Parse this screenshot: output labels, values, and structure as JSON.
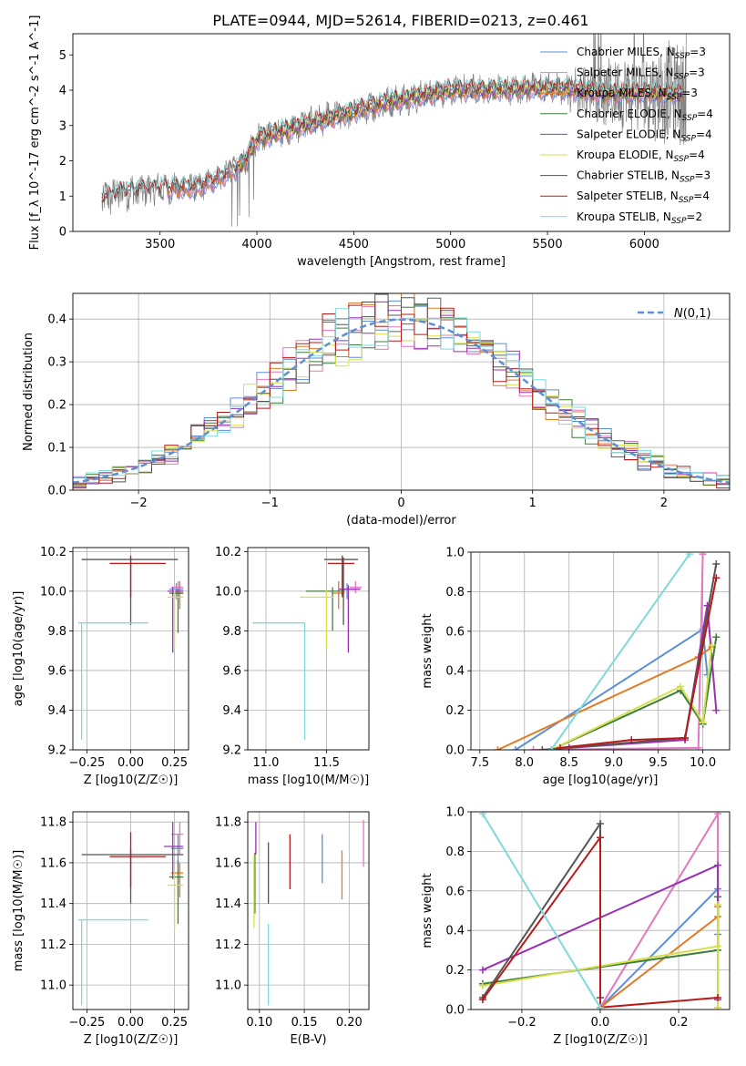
{
  "figure": {
    "title": "PLATE=0944, MJD=52614, FIBERID=0213, z=0.461"
  },
  "colors": {
    "Chabrier MILES": "#5b8fd6",
    "Salpeter MILES": "#e377c2",
    "Kroupa MILES": "#e07b26",
    "Chabrier ELODIE": "#3d7d3d",
    "Salpeter ELODIE": "#9b30b5",
    "Kroupa ELODIE": "#d6e04a",
    "Chabrier STELIB": "#555555",
    "Salpeter STELIB": "#b81a1a",
    "Kroupa STELIB": "#7fd9db",
    "data": "#7f7f7f"
  },
  "chart_data": [
    {
      "id": "spectrum",
      "type": "line",
      "xlabel": "wavelength [Angstrom, rest frame]",
      "ylabel": "Flux [f_λ 10^-17 erg cm^-2 s^-1 A^-1]",
      "xlim": [
        3050,
        6440
      ],
      "ylim": [
        0,
        5.6
      ],
      "xticks": [
        3500,
        4000,
        4500,
        5000,
        5500,
        6000
      ],
      "yticks": [
        0,
        1,
        2,
        3,
        4,
        5
      ],
      "grid": false,
      "legend_position": "upper right",
      "legend": [
        "Chabrier MILES, N_SSP=3",
        "Salpeter MILES, N_SSP=3",
        "Kroupa MILES, N_SSP=3",
        "Chabrier ELODIE, N_SSP=4",
        "Salpeter ELODIE, N_SSP=4",
        "Kroupa ELODIE, N_SSP=4",
        "Chabrier STELIB, N_SSP=3",
        "Salpeter STELIB, N_SSP=4",
        "Kroupa STELIB, N_SSP=2"
      ],
      "series": [
        {
          "name": "Chabrier MILES, N_SSP=3",
          "wavelength_range": [
            3540,
            6200
          ]
        },
        {
          "name": "Salpeter MILES, N_SSP=3",
          "wavelength_range": [
            3540,
            6200
          ]
        },
        {
          "name": "Kroupa MILES, N_SSP=3",
          "wavelength_range": [
            3540,
            6200
          ]
        },
        {
          "name": "Chabrier ELODIE, N_SSP=4",
          "wavelength_range": [
            3900,
            6200
          ]
        },
        {
          "name": "Salpeter ELODIE, N_SSP=4",
          "wavelength_range": [
            3900,
            6200
          ]
        },
        {
          "name": "Kroupa ELODIE, N_SSP=4",
          "wavelength_range": [
            3900,
            6200
          ]
        },
        {
          "name": "Chabrier STELIB, N_SSP=3",
          "wavelength_range": [
            3200,
            6200
          ]
        },
        {
          "name": "Salpeter STELIB, N_SSP=4",
          "wavelength_range": [
            3200,
            6200
          ]
        },
        {
          "name": "Kroupa STELIB, N_SSP=2",
          "wavelength_range": [
            3200,
            6200
          ]
        }
      ],
      "continuum_wavelength": [
        3200,
        3300,
        3500,
        3700,
        3800,
        3900,
        3950,
        4000,
        4100,
        4300,
        4500,
        4700,
        4900,
        5000,
        5200,
        5400,
        5600,
        5800,
        6000,
        6200
      ],
      "continuum_flux": [
        0.9,
        1.1,
        1.2,
        1.25,
        1.5,
        1.8,
        2.1,
        2.6,
        2.8,
        3.1,
        3.4,
        3.7,
        3.9,
        4.0,
        4.0,
        4.05,
        4.05,
        3.9,
        3.95,
        3.9
      ]
    },
    {
      "id": "residuals",
      "type": "histogram",
      "xlabel": "(data-model)/error",
      "ylabel": "Normed distribution",
      "xlim": [
        -2.5,
        2.5
      ],
      "ylim": [
        0,
        0.46
      ],
      "xticks": [
        -2,
        -1,
        0,
        1,
        2
      ],
      "yticks": [
        0.0,
        0.1,
        0.2,
        0.3,
        0.4
      ],
      "grid": true,
      "legend_position": "upper right",
      "legend": [
        "N(0,1)"
      ],
      "bin_width": 0.1,
      "gaussian": {
        "mean": 0,
        "sigma": 1
      }
    },
    {
      "id": "age_vs_Z",
      "type": "errorbar",
      "xlabel": "Z [log10(Z/Z☉)]",
      "ylabel": "age [log10(age/yr)]",
      "xlim": [
        -0.33,
        0.33
      ],
      "ylim": [
        9.2,
        10.22
      ],
      "xticks": [
        -0.25,
        0.0,
        0.25
      ],
      "yticks": [
        9.2,
        9.4,
        9.6,
        9.8,
        10.0,
        10.2
      ],
      "grid": true,
      "points": [
        {
          "model": "Chabrier MILES",
          "x": 0.26,
          "xerr": [
            0.04,
            0.04
          ],
          "y": 10.01,
          "yerr": [
            0.05,
            0.03
          ]
        },
        {
          "model": "Salpeter MILES",
          "x": 0.27,
          "xerr": [
            0.04,
            0.03
          ],
          "y": 10.02,
          "yerr": [
            0.03,
            0.03
          ]
        },
        {
          "model": "Kroupa MILES",
          "x": 0.28,
          "xerr": [
            0.04,
            0.02
          ],
          "y": 9.99,
          "yerr": [
            0.08,
            0.06
          ]
        },
        {
          "model": "Chabrier ELODIE",
          "x": 0.27,
          "xerr": [
            0.05,
            0.03
          ],
          "y": 9.99,
          "yerr": [
            0.2,
            0.02
          ]
        },
        {
          "model": "Salpeter ELODIE",
          "x": 0.24,
          "xerr": [
            0.03,
            0.06
          ],
          "y": 10.0,
          "yerr": [
            0.31,
            0.02
          ]
        },
        {
          "model": "Kroupa ELODIE",
          "x": 0.25,
          "xerr": [
            0.04,
            0.05
          ],
          "y": 9.97,
          "yerr": [
            0.26,
            0.04
          ]
        },
        {
          "model": "Chabrier STELIB",
          "x": 0.0,
          "xerr": [
            0.28,
            0.27
          ],
          "y": 10.16,
          "yerr": [
            0.33,
            0.01
          ]
        },
        {
          "model": "Salpeter STELIB",
          "x": 0.0,
          "xerr": [
            0.12,
            0.2
          ],
          "y": 10.14,
          "yerr": [
            0.17,
            0.04
          ]
        },
        {
          "model": "Kroupa STELIB",
          "x": -0.28,
          "xerr": [
            0.02,
            0.38
          ],
          "y": 9.84,
          "yerr": [
            0.59,
            0.0
          ]
        }
      ]
    },
    {
      "id": "age_vs_mass",
      "type": "errorbar",
      "xlabel": "mass [log10(M/M☉)]",
      "ylabel": "",
      "xlim": [
        10.85,
        11.85
      ],
      "ylim": [
        9.2,
        10.22
      ],
      "xticks": [
        11.0,
        11.5
      ],
      "yticks": [
        9.2,
        9.4,
        9.6,
        9.8,
        10.0,
        10.2
      ],
      "grid": true,
      "points": [
        {
          "model": "Chabrier MILES",
          "x": 11.67,
          "xerr": [
            0.06,
            0.06
          ],
          "y": 10.01,
          "yerr": [
            0.05,
            0.03
          ]
        },
        {
          "model": "Salpeter MILES",
          "x": 11.74,
          "xerr": [
            0.05,
            0.05
          ],
          "y": 10.02,
          "yerr": [
            0.03,
            0.03
          ]
        },
        {
          "model": "Kroupa MILES",
          "x": 11.6,
          "xerr": [
            0.05,
            0.05
          ],
          "y": 9.99,
          "yerr": [
            0.08,
            0.06
          ]
        },
        {
          "model": "Chabrier ELODIE",
          "x": 11.55,
          "xerr": [
            0.22,
            0.1
          ],
          "y": 10.0,
          "yerr": [
            0.2,
            0.02
          ]
        },
        {
          "model": "Salpeter ELODIE",
          "x": 11.68,
          "xerr": [
            0.08,
            0.1
          ],
          "y": 10.01,
          "yerr": [
            0.32,
            0.02
          ]
        },
        {
          "model": "Kroupa ELODIE",
          "x": 11.5,
          "xerr": [
            0.22,
            0.06
          ],
          "y": 9.97,
          "yerr": [
            0.26,
            0.04
          ]
        },
        {
          "model": "Chabrier STELIB",
          "x": 11.64,
          "xerr": [
            0.16,
            0.12
          ],
          "y": 10.16,
          "yerr": [
            0.33,
            0.01
          ]
        },
        {
          "model": "Salpeter STELIB",
          "x": 11.63,
          "xerr": [
            0.12,
            0.1
          ],
          "y": 10.14,
          "yerr": [
            0.17,
            0.04
          ]
        },
        {
          "model": "Kroupa STELIB",
          "x": 11.32,
          "xerr": [
            0.43,
            0.0
          ],
          "y": 9.84,
          "yerr": [
            0.59,
            0.0
          ]
        }
      ]
    },
    {
      "id": "weight_vs_age",
      "type": "line",
      "xlabel": "age [log10(age/yr)]",
      "ylabel": "mass weight",
      "xlim": [
        7.4,
        10.3
      ],
      "ylim": [
        0,
        1.0
      ],
      "xticks": [
        7.5,
        8.0,
        8.5,
        9.0,
        9.5,
        10.0
      ],
      "yticks": [
        0.0,
        0.2,
        0.4,
        0.6,
        0.8,
        1.0
      ],
      "grid": true,
      "series": [
        {
          "name": "Chabrier MILES",
          "x": [
            7.9,
            10.0,
            10.05
          ],
          "y": [
            0.0,
            0.61,
            0.38
          ]
        },
        {
          "name": "Salpeter MILES",
          "x": [
            8.1,
            9.95,
            10.0
          ],
          "y": [
            0.0,
            0.01,
            0.99
          ]
        },
        {
          "name": "Kroupa MILES",
          "x": [
            7.7,
            9.95,
            10.1
          ],
          "y": [
            0.0,
            0.47,
            0.52
          ]
        },
        {
          "name": "Chabrier ELODIE",
          "x": [
            8.3,
            9.75,
            10.0,
            10.15
          ],
          "y": [
            0.0,
            0.3,
            0.13,
            0.57
          ]
        },
        {
          "name": "Salpeter ELODIE",
          "x": [
            8.5,
            9.8,
            10.05,
            10.15
          ],
          "y": [
            0.01,
            0.05,
            0.73,
            0.2
          ]
        },
        {
          "name": "Kroupa ELODIE",
          "x": [
            8.3,
            9.75,
            10.0,
            10.1
          ],
          "y": [
            0.0,
            0.32,
            0.14,
            0.53
          ]
        },
        {
          "name": "Chabrier STELIB",
          "x": [
            8.2,
            9.8,
            10.15
          ],
          "y": [
            0.0,
            0.06,
            0.94
          ]
        },
        {
          "name": "Salpeter STELIB",
          "x": [
            8.4,
            9.2,
            9.8,
            10.15
          ],
          "y": [
            0.01,
            0.05,
            0.06,
            0.87
          ]
        },
        {
          "name": "Kroupa STELIB",
          "x": [
            8.3,
            9.85
          ],
          "y": [
            0.0,
            0.99
          ]
        }
      ]
    },
    {
      "id": "mass_vs_Z",
      "type": "errorbar",
      "xlabel": "Z [log10(Z/Z☉)]",
      "ylabel": "mass [log10(M/M☉)]",
      "xlim": [
        -0.33,
        0.33
      ],
      "ylim": [
        10.88,
        11.85
      ],
      "xticks": [
        -0.25,
        0.0,
        0.25
      ],
      "yticks": [
        11.0,
        11.2,
        11.4,
        11.6,
        11.8
      ],
      "grid": true,
      "points": [
        {
          "model": "Chabrier MILES",
          "x": 0.27,
          "xerr": [
            0.04,
            0.03
          ],
          "y": 11.67,
          "yerr": [
            0.07,
            0.07
          ]
        },
        {
          "model": "Salpeter MILES",
          "x": 0.28,
          "xerr": [
            0.05,
            0.02
          ],
          "y": 11.74,
          "yerr": [
            0.1,
            0.06
          ]
        },
        {
          "model": "Kroupa MILES",
          "x": 0.28,
          "xerr": [
            0.05,
            0.02
          ],
          "y": 11.55,
          "yerr": [
            0.12,
            0.05
          ]
        },
        {
          "model": "Chabrier ELODIE",
          "x": 0.27,
          "xerr": [
            0.05,
            0.03
          ],
          "y": 11.53,
          "yerr": [
            0.23,
            0.08
          ]
        },
        {
          "model": "Salpeter ELODIE",
          "x": 0.24,
          "xerr": [
            0.05,
            0.06
          ],
          "y": 11.68,
          "yerr": [
            0.16,
            0.12
          ]
        },
        {
          "model": "Kroupa ELODIE",
          "x": 0.25,
          "xerr": [
            0.04,
            0.05
          ],
          "y": 11.49,
          "yerr": [
            0.22,
            0.08
          ]
        },
        {
          "model": "Chabrier STELIB",
          "x": 0.0,
          "xerr": [
            0.28,
            0.3
          ],
          "y": 11.64,
          "yerr": [
            0.24,
            0.03
          ]
        },
        {
          "model": "Salpeter STELIB",
          "x": 0.0,
          "xerr": [
            0.12,
            0.2
          ],
          "y": 11.63,
          "yerr": [
            0.15,
            0.12
          ]
        },
        {
          "model": "Kroupa STELIB",
          "x": -0.28,
          "xerr": [
            0.02,
            0.38
          ],
          "y": 11.32,
          "yerr": [
            0.42,
            0.0
          ]
        }
      ]
    },
    {
      "id": "mass_vs_ebv",
      "type": "errorbar",
      "xlabel": "E(B-V)",
      "ylabel": "",
      "xlim": [
        0.087,
        0.222
      ],
      "ylim": [
        10.88,
        11.85
      ],
      "xticks": [
        0.1,
        0.15,
        0.2
      ],
      "yticks": [
        11.0,
        11.2,
        11.4,
        11.6,
        11.8
      ],
      "grid": true,
      "points": [
        {
          "model": "Chabrier MILES",
          "x": 0.17,
          "y": 11.62,
          "yerr": [
            0.12,
            0.12
          ]
        },
        {
          "model": "Salpeter MILES",
          "x": 0.216,
          "y": 11.69,
          "yerr": [
            0.11,
            0.12
          ]
        },
        {
          "model": "Kroupa MILES",
          "x": 0.192,
          "y": 11.54,
          "yerr": [
            0.12,
            0.12
          ]
        },
        {
          "model": "Chabrier ELODIE",
          "x": 0.095,
          "y": 11.5,
          "yerr": [
            0.15,
            0.15
          ]
        },
        {
          "model": "Salpeter ELODIE",
          "x": 0.096,
          "y": 11.72,
          "yerr": [
            0.08,
            0.08
          ]
        },
        {
          "model": "Kroupa ELODIE",
          "x": 0.094,
          "y": 11.46,
          "yerr": [
            0.18,
            0.18
          ]
        },
        {
          "model": "Chabrier STELIB",
          "x": 0.11,
          "y": 11.55,
          "yerr": [
            0.15,
            0.15
          ]
        },
        {
          "model": "Salpeter STELIB",
          "x": 0.134,
          "y": 11.61,
          "yerr": [
            0.14,
            0.13
          ]
        },
        {
          "model": "Kroupa STELIB",
          "x": 0.11,
          "y": 11.1,
          "yerr": [
            0.2,
            0.2
          ]
        }
      ]
    },
    {
      "id": "weight_vs_Z",
      "type": "line",
      "xlabel": "Z [log10(Z/Z☉)]",
      "ylabel": "mass weight",
      "xlim": [
        -0.33,
        0.33
      ],
      "ylim": [
        0,
        1.0
      ],
      "xticks": [
        -0.2,
        0.0,
        0.2
      ],
      "yticks": [
        0.0,
        0.2,
        0.4,
        0.6,
        0.8,
        1.0
      ],
      "grid": true,
      "series": [
        {
          "name": "Chabrier MILES",
          "x": [
            0.0,
            0.3,
            0.3
          ],
          "y": [
            0.01,
            0.61,
            0.38
          ]
        },
        {
          "name": "Salpeter MILES",
          "x": [
            0.0,
            0.3,
            0.3
          ],
          "y": [
            0.01,
            0.99,
            0.01
          ]
        },
        {
          "name": "Kroupa MILES",
          "x": [
            0.0,
            0.3,
            0.3
          ],
          "y": [
            0.01,
            0.47,
            0.52
          ]
        },
        {
          "name": "Chabrier ELODIE",
          "x": [
            -0.3,
            0.3,
            0.3
          ],
          "y": [
            0.13,
            0.3,
            0.57
          ]
        },
        {
          "name": "Salpeter ELODIE",
          "x": [
            -0.3,
            0.3,
            0.3
          ],
          "y": [
            0.2,
            0.73,
            0.05
          ]
        },
        {
          "name": "Kroupa ELODIE",
          "x": [
            -0.3,
            0.3,
            0.3,
            0.3
          ],
          "y": [
            0.12,
            0.32,
            0.53,
            0.01
          ]
        },
        {
          "name": "Chabrier STELIB",
          "x": [
            -0.3,
            0.0,
            0.0
          ],
          "y": [
            0.06,
            0.94,
            0.06
          ]
        },
        {
          "name": "Salpeter STELIB",
          "x": [
            -0.3,
            0.0,
            0.0,
            0.3
          ],
          "y": [
            0.05,
            0.87,
            0.01,
            0.06
          ]
        },
        {
          "name": "Kroupa STELIB",
          "x": [
            -0.3,
            0.0
          ],
          "y": [
            0.99,
            0.01
          ]
        }
      ]
    }
  ]
}
